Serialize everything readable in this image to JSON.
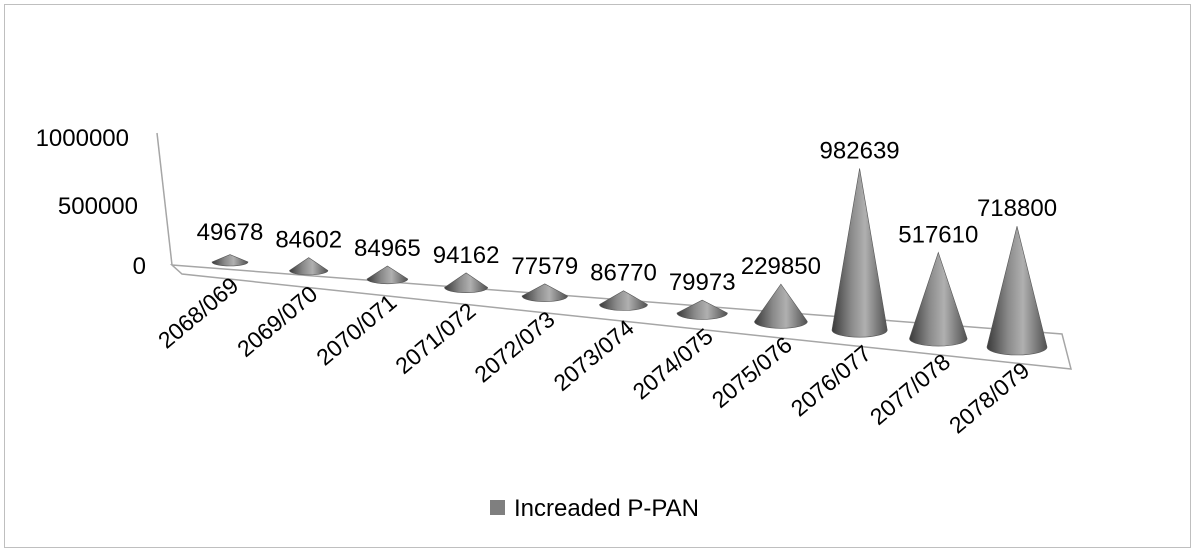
{
  "chart_data": {
    "type": "bar",
    "style": "3d-cone",
    "categories": [
      "2068/069",
      "2069/070",
      "2070/071",
      "2071/072",
      "2072/073",
      "2073/074",
      "2074/075",
      "2075/076",
      "2076/077",
      "2077/078",
      "2078/079"
    ],
    "series": [
      {
        "name": "Increaded P-PAN",
        "values": [
          49678,
          84602,
          84965,
          94162,
          77579,
          86770,
          79973,
          229850,
          982639,
          517610,
          718800
        ],
        "data_labels": [
          "49678",
          "84602",
          "84965",
          "94162",
          "77579",
          "86770",
          "79973",
          "229850",
          "982639",
          "517610",
          "718800"
        ]
      }
    ],
    "yticks": [
      "0",
      "500000",
      "1000000"
    ],
    "ylim": [
      0,
      1000000
    ],
    "legend_position": "bottom",
    "colors": {
      "cone": "#6e6e6e",
      "legend_swatch": "#7f7f7f",
      "axis": "#a6a6a6"
    }
  }
}
